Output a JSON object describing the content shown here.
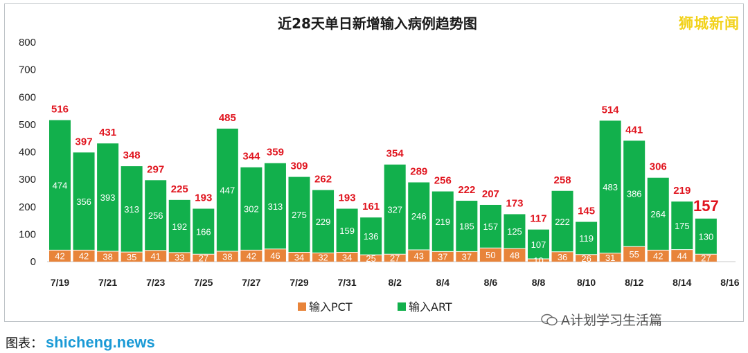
{
  "brand": "狮城新闻",
  "watermark": "A计划学习生活篇",
  "source": {
    "prefix": "图表：",
    "site": "shicheng.news"
  },
  "colors": {
    "pct": "#e8843a",
    "art": "#12b04c",
    "total_label": "#e0141e",
    "brand": "#f2d21b"
  },
  "chart_data": {
    "type": "bar",
    "stacked": true,
    "title": "近28天单日新增输入病例趋势图",
    "ylim": [
      0,
      800
    ],
    "yticks": [
      0,
      100,
      200,
      300,
      400,
      500,
      600,
      700,
      800
    ],
    "grid": false,
    "legend_position": "bottom",
    "xtick_labels": [
      "7/19",
      "7/21",
      "7/23",
      "7/25",
      "7/27",
      "7/29",
      "7/31",
      "8/2",
      "8/4",
      "8/6",
      "8/8",
      "8/10",
      "8/12",
      "8/14",
      "8/16"
    ],
    "series": [
      {
        "name": "输入PCT",
        "color": "#e8843a",
        "values": [
          42,
          42,
          38,
          35,
          41,
          33,
          27,
          38,
          42,
          46,
          34,
          32,
          34,
          25,
          27,
          43,
          37,
          37,
          50,
          48,
          10,
          36,
          26,
          31,
          55,
          42,
          44,
          27
        ]
      },
      {
        "name": "输入ART",
        "color": "#12b04c",
        "values": [
          474,
          356,
          393,
          313,
          256,
          192,
          166,
          447,
          302,
          313,
          275,
          229,
          159,
          136,
          327,
          246,
          219,
          185,
          157,
          125,
          107,
          222,
          119,
          483,
          386,
          264,
          175,
          130
        ]
      }
    ],
    "totals": [
      516,
      397,
      431,
      348,
      297,
      225,
      193,
      485,
      344,
      359,
      309,
      262,
      193,
      161,
      354,
      289,
      256,
      222,
      207,
      173,
      117,
      258,
      145,
      514,
      441,
      306,
      219,
      157
    ]
  }
}
